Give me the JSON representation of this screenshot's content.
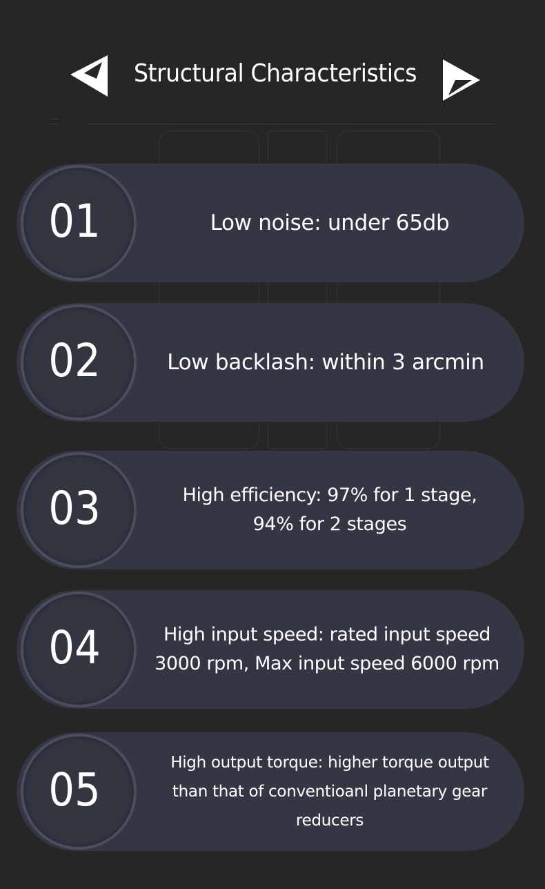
{
  "header": {
    "title": "Structural Characteristics",
    "left_icon": "triangle-left-icon",
    "right_icon": "triangle-right-icon"
  },
  "colors": {
    "background": "#262626",
    "card": "#343643",
    "ring": "#4a4e60",
    "text": "#ffffff"
  },
  "items": [
    {
      "number": "01",
      "lines": [
        "Low noise: under 65db"
      ]
    },
    {
      "number": "02",
      "lines": [
        "Low backlash: within 3 arcmin"
      ]
    },
    {
      "number": "03",
      "lines": [
        "High efficiency: 97% for 1 stage,",
        "94% for 2 stages"
      ]
    },
    {
      "number": "04",
      "lines": [
        "High input speed: rated input speed",
        "3000 rpm, Max input speed 6000 rpm"
      ]
    },
    {
      "number": "05",
      "lines": [
        "High output torque: higher torque output",
        "than that of conventioanl planetary gear",
        "reducers"
      ]
    }
  ]
}
